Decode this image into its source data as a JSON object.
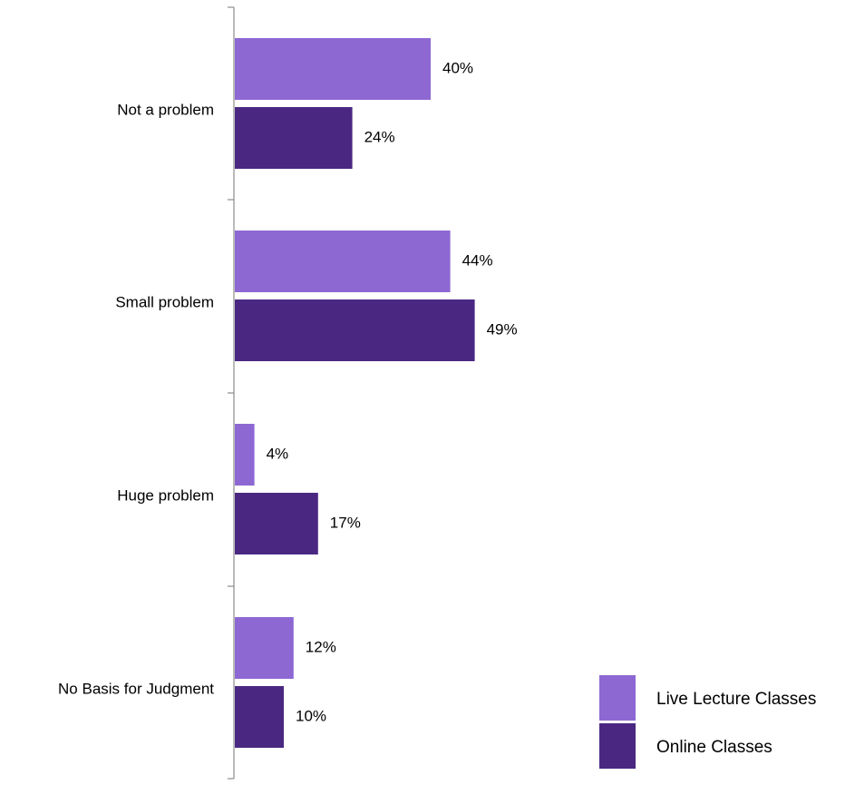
{
  "chart_data": {
    "type": "bar",
    "orientation": "horizontal",
    "categories": [
      "Not a problem",
      "Small problem",
      "Huge problem",
      "No Basis for Judgment"
    ],
    "series": [
      {
        "name": "Live Lecture Classes",
        "color": "#8D68D3",
        "values": [
          40,
          44,
          4,
          12
        ],
        "labels": [
          "40%",
          "44%",
          "4%",
          "12%"
        ]
      },
      {
        "name": "Online Classes",
        "color": "#4A2882",
        "values": [
          24,
          49,
          17,
          10
        ],
        "labels": [
          "24%",
          "49%",
          "17%",
          "10%"
        ]
      }
    ],
    "unit": "%",
    "xlim": [
      0,
      100
    ],
    "grid": false,
    "legend": "bottom-right"
  }
}
